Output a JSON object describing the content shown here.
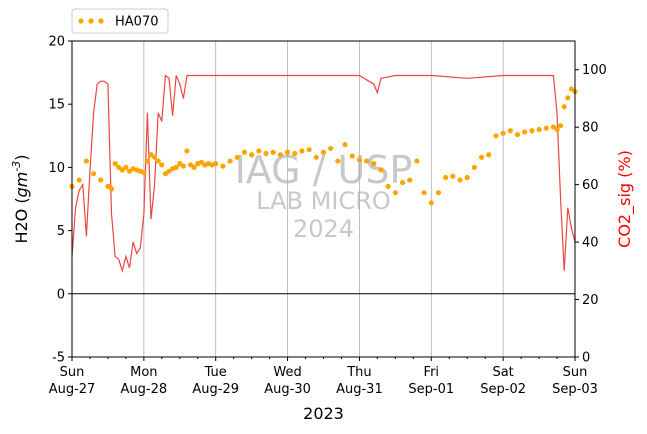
{
  "chart_data": {
    "type": "scatter",
    "title": "",
    "xlabel": "2023",
    "ylabel": "H2O (gm^-3)",
    "ylabel_right": "CO2_sig (%)",
    "ylim": [
      -5,
      20
    ],
    "ylim_right": [
      0,
      110
    ],
    "yticks": [
      -5,
      0,
      5,
      10,
      15,
      20
    ],
    "yticks_right": [
      0,
      20,
      40,
      60,
      80,
      100
    ],
    "xlim": [
      0,
      7
    ],
    "xticks": [
      {
        "day": 0,
        "line1": "Sun",
        "line2": "Aug-27"
      },
      {
        "day": 1,
        "line1": "Mon",
        "line2": "Aug-28"
      },
      {
        "day": 2,
        "line1": "Tue",
        "line2": "Aug-29"
      },
      {
        "day": 3,
        "line1": "Wed",
        "line2": "Aug-30"
      },
      {
        "day": 4,
        "line1": "Thu",
        "line2": "Aug-31"
      },
      {
        "day": 5,
        "line1": "Fri",
        "line2": "Sep-01"
      },
      {
        "day": 6,
        "line1": "Sat",
        "line2": "Sep-02"
      },
      {
        "day": 7,
        "line1": "Sun",
        "line2": "Sep-03"
      }
    ],
    "grid": "vertical",
    "legend": "top-left",
    "colors": {
      "h2o": "#FFA500",
      "co2": "#EE4444",
      "right_axis_label": "#FF0000"
    },
    "watermark": [
      "IAG / USP",
      "LAB MICRO",
      "2024"
    ],
    "series": [
      {
        "name": "HA070",
        "axis": "left",
        "style": "dots",
        "x": [
          0.0,
          0.1,
          0.2,
          0.3,
          0.4,
          0.5,
          0.55,
          0.6,
          0.65,
          0.7,
          0.75,
          0.8,
          0.85,
          0.9,
          0.95,
          1.0,
          1.05,
          1.1,
          1.15,
          1.2,
          1.25,
          1.3,
          1.35,
          1.4,
          1.45,
          1.5,
          1.55,
          1.6,
          1.65,
          1.7,
          1.75,
          1.8,
          1.85,
          1.9,
          1.95,
          2.0,
          2.1,
          2.2,
          2.3,
          2.4,
          2.5,
          2.6,
          2.7,
          2.8,
          2.9,
          3.0,
          3.1,
          3.2,
          3.3,
          3.4,
          3.5,
          3.6,
          3.7,
          3.8,
          3.9,
          4.0,
          4.1,
          4.2,
          4.3,
          4.4,
          4.5,
          4.6,
          4.7,
          4.8,
          4.9,
          5.0,
          5.1,
          5.2,
          5.3,
          5.4,
          5.5,
          5.6,
          5.7,
          5.8,
          5.9,
          6.0,
          6.1,
          6.2,
          6.3,
          6.4,
          6.5,
          6.6,
          6.7,
          6.75,
          6.8,
          6.85,
          6.9,
          6.95,
          7.0
        ],
        "y": [
          8.5,
          9.0,
          10.5,
          9.5,
          9.0,
          8.5,
          8.3,
          10.3,
          10.0,
          9.8,
          10.0,
          9.7,
          9.9,
          9.8,
          9.7,
          9.6,
          10.5,
          11.0,
          10.8,
          10.5,
          10.2,
          9.5,
          9.7,
          9.9,
          10.0,
          10.3,
          10.1,
          11.3,
          10.2,
          10.0,
          10.3,
          10.4,
          10.2,
          10.3,
          10.2,
          10.3,
          10.1,
          10.5,
          10.8,
          11.2,
          11.0,
          11.3,
          11.1,
          11.2,
          11.0,
          11.2,
          11.1,
          11.3,
          11.4,
          10.8,
          11.2,
          11.5,
          10.5,
          11.8,
          10.9,
          10.6,
          10.5,
          10.3,
          9.8,
          8.5,
          8.0,
          8.8,
          9.0,
          10.5,
          8.0,
          7.2,
          8.0,
          9.2,
          9.3,
          9.0,
          9.2,
          10.0,
          10.8,
          11.0,
          12.5,
          12.7,
          12.9,
          12.6,
          12.8,
          12.9,
          13.0,
          13.1,
          13.2,
          13.0,
          13.3,
          14.8,
          15.5,
          16.2,
          16.0
        ]
      },
      {
        "name": "",
        "axis": "right",
        "style": "line",
        "x": [
          0.0,
          0.05,
          0.1,
          0.15,
          0.2,
          0.25,
          0.3,
          0.35,
          0.4,
          0.45,
          0.5,
          0.55,
          0.6,
          0.65,
          0.7,
          0.75,
          0.8,
          0.85,
          0.9,
          0.95,
          1.0,
          1.05,
          1.1,
          1.15,
          1.2,
          1.25,
          1.3,
          1.35,
          1.4,
          1.45,
          1.5,
          1.55,
          1.6,
          1.65,
          1.7,
          1.75,
          1.8,
          1.85,
          1.9,
          1.95,
          2.0,
          2.5,
          3.0,
          3.5,
          4.0,
          4.2,
          4.25,
          4.3,
          4.5,
          5.0,
          5.5,
          6.0,
          6.5,
          6.7,
          6.75,
          6.8,
          6.85,
          6.9,
          6.95,
          7.0
        ],
        "y": [
          35,
          52,
          58,
          60,
          42,
          65,
          85,
          95,
          96,
          96,
          95,
          50,
          35,
          34,
          30,
          35,
          31,
          40,
          36,
          38,
          50,
          85,
          48,
          60,
          85,
          82,
          98,
          97,
          84,
          98,
          95,
          90,
          98,
          98,
          98,
          98,
          98,
          98,
          98,
          98,
          98,
          98,
          98,
          98,
          98,
          95,
          92,
          97,
          98,
          98,
          97,
          98,
          98,
          98,
          85,
          55,
          30,
          52,
          45,
          40
        ]
      }
    ]
  }
}
